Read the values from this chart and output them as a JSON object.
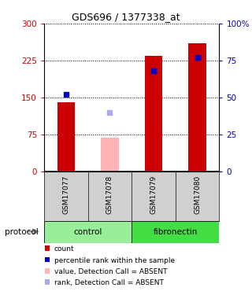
{
  "title": "GDS696 / 1377338_at",
  "samples": [
    "GSM17077",
    "GSM17078",
    "GSM17079",
    "GSM17080"
  ],
  "bar_values": [
    140,
    null,
    235,
    260
  ],
  "bar_color": "#cc0000",
  "absent_bar_values": [
    null,
    68,
    null,
    null
  ],
  "absent_bar_color": "#ffb3b3",
  "rank_present_pct": [
    52,
    null,
    68,
    77
  ],
  "rank_absent_pct": [
    null,
    40,
    null,
    null
  ],
  "rank_present_color": "#0000cc",
  "rank_absent_color": "#aaaaee",
  "ylim_left": [
    0,
    300
  ],
  "ylim_right": [
    0,
    100
  ],
  "yticks_left": [
    0,
    75,
    150,
    225,
    300
  ],
  "ytick_labels_left": [
    "0",
    "75",
    "150",
    "225",
    "300"
  ],
  "ytick_labels_right": [
    "0",
    "25",
    "50",
    "75",
    "100%"
  ],
  "groups": [
    {
      "label": "control",
      "cols": [
        0,
        1
      ],
      "color": "#99ee99"
    },
    {
      "label": "fibronectin",
      "cols": [
        2,
        3
      ],
      "color": "#44dd44"
    }
  ],
  "protocol_label": "protocol",
  "legend_items": [
    {
      "label": "count",
      "color": "#cc0000"
    },
    {
      "label": "percentile rank within the sample",
      "color": "#0000cc"
    },
    {
      "label": "value, Detection Call = ABSENT",
      "color": "#ffb3b3"
    },
    {
      "label": "rank, Detection Call = ABSENT",
      "color": "#aaaaee"
    }
  ],
  "left_tick_color": "#cc0000",
  "right_tick_color": "#0000bb",
  "bar_width": 0.4,
  "sq_size": 5
}
